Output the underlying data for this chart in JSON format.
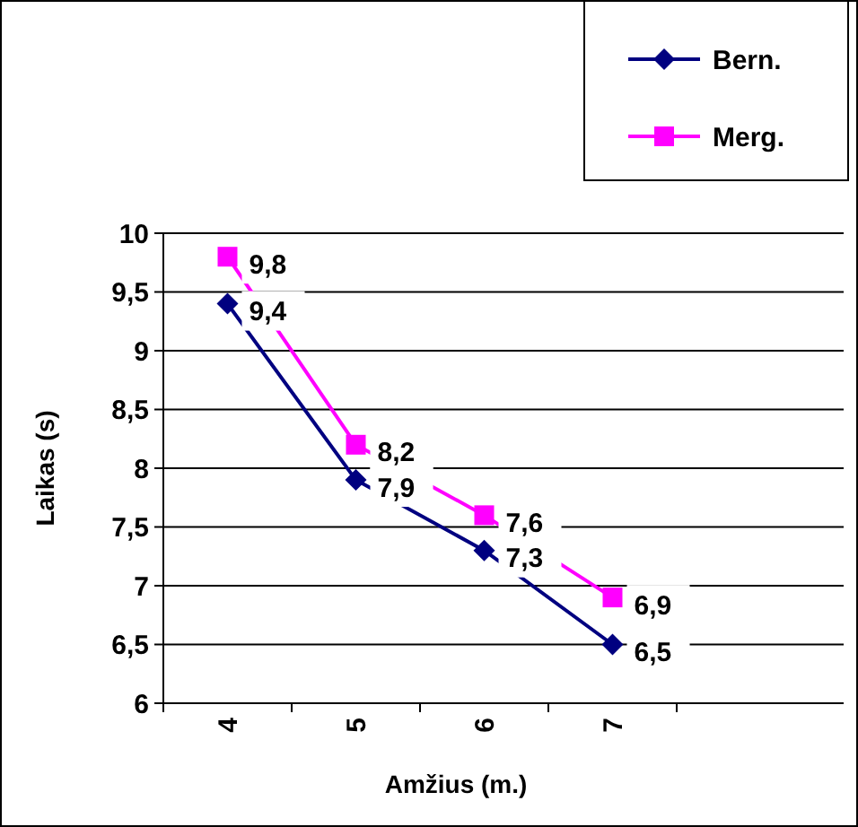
{
  "chart_data": {
    "type": "line",
    "xlabel": "Amžius (m.)",
    "ylabel": "Laikas (s)",
    "categories": [
      "4",
      "5",
      "6",
      "7"
    ],
    "series": [
      {
        "name": "Bern.",
        "color": "#000080",
        "marker": "diamond",
        "values": [
          9.4,
          7.9,
          7.3,
          6.5
        ],
        "value_labels": [
          "9,4",
          "7,9",
          "7,3",
          "6,5"
        ]
      },
      {
        "name": "Merg.",
        "color": "#ff00ff",
        "marker": "square",
        "values": [
          9.8,
          8.2,
          7.6,
          6.9
        ],
        "value_labels": [
          "9,8",
          "8,2",
          "7,6",
          "6,9"
        ]
      }
    ],
    "ylim": [
      6,
      10
    ],
    "yticks": [
      {
        "value": 6,
        "label": "6"
      },
      {
        "value": 6.5,
        "label": "6,5"
      },
      {
        "value": 7,
        "label": "7"
      },
      {
        "value": 7.5,
        "label": "7,5"
      },
      {
        "value": 8,
        "label": "8"
      },
      {
        "value": 8.5,
        "label": "8,5"
      },
      {
        "value": 9,
        "label": "9"
      },
      {
        "value": 9.5,
        "label": "9,5"
      },
      {
        "value": 10,
        "label": "10"
      }
    ],
    "grid": "y",
    "legend": "top right"
  }
}
